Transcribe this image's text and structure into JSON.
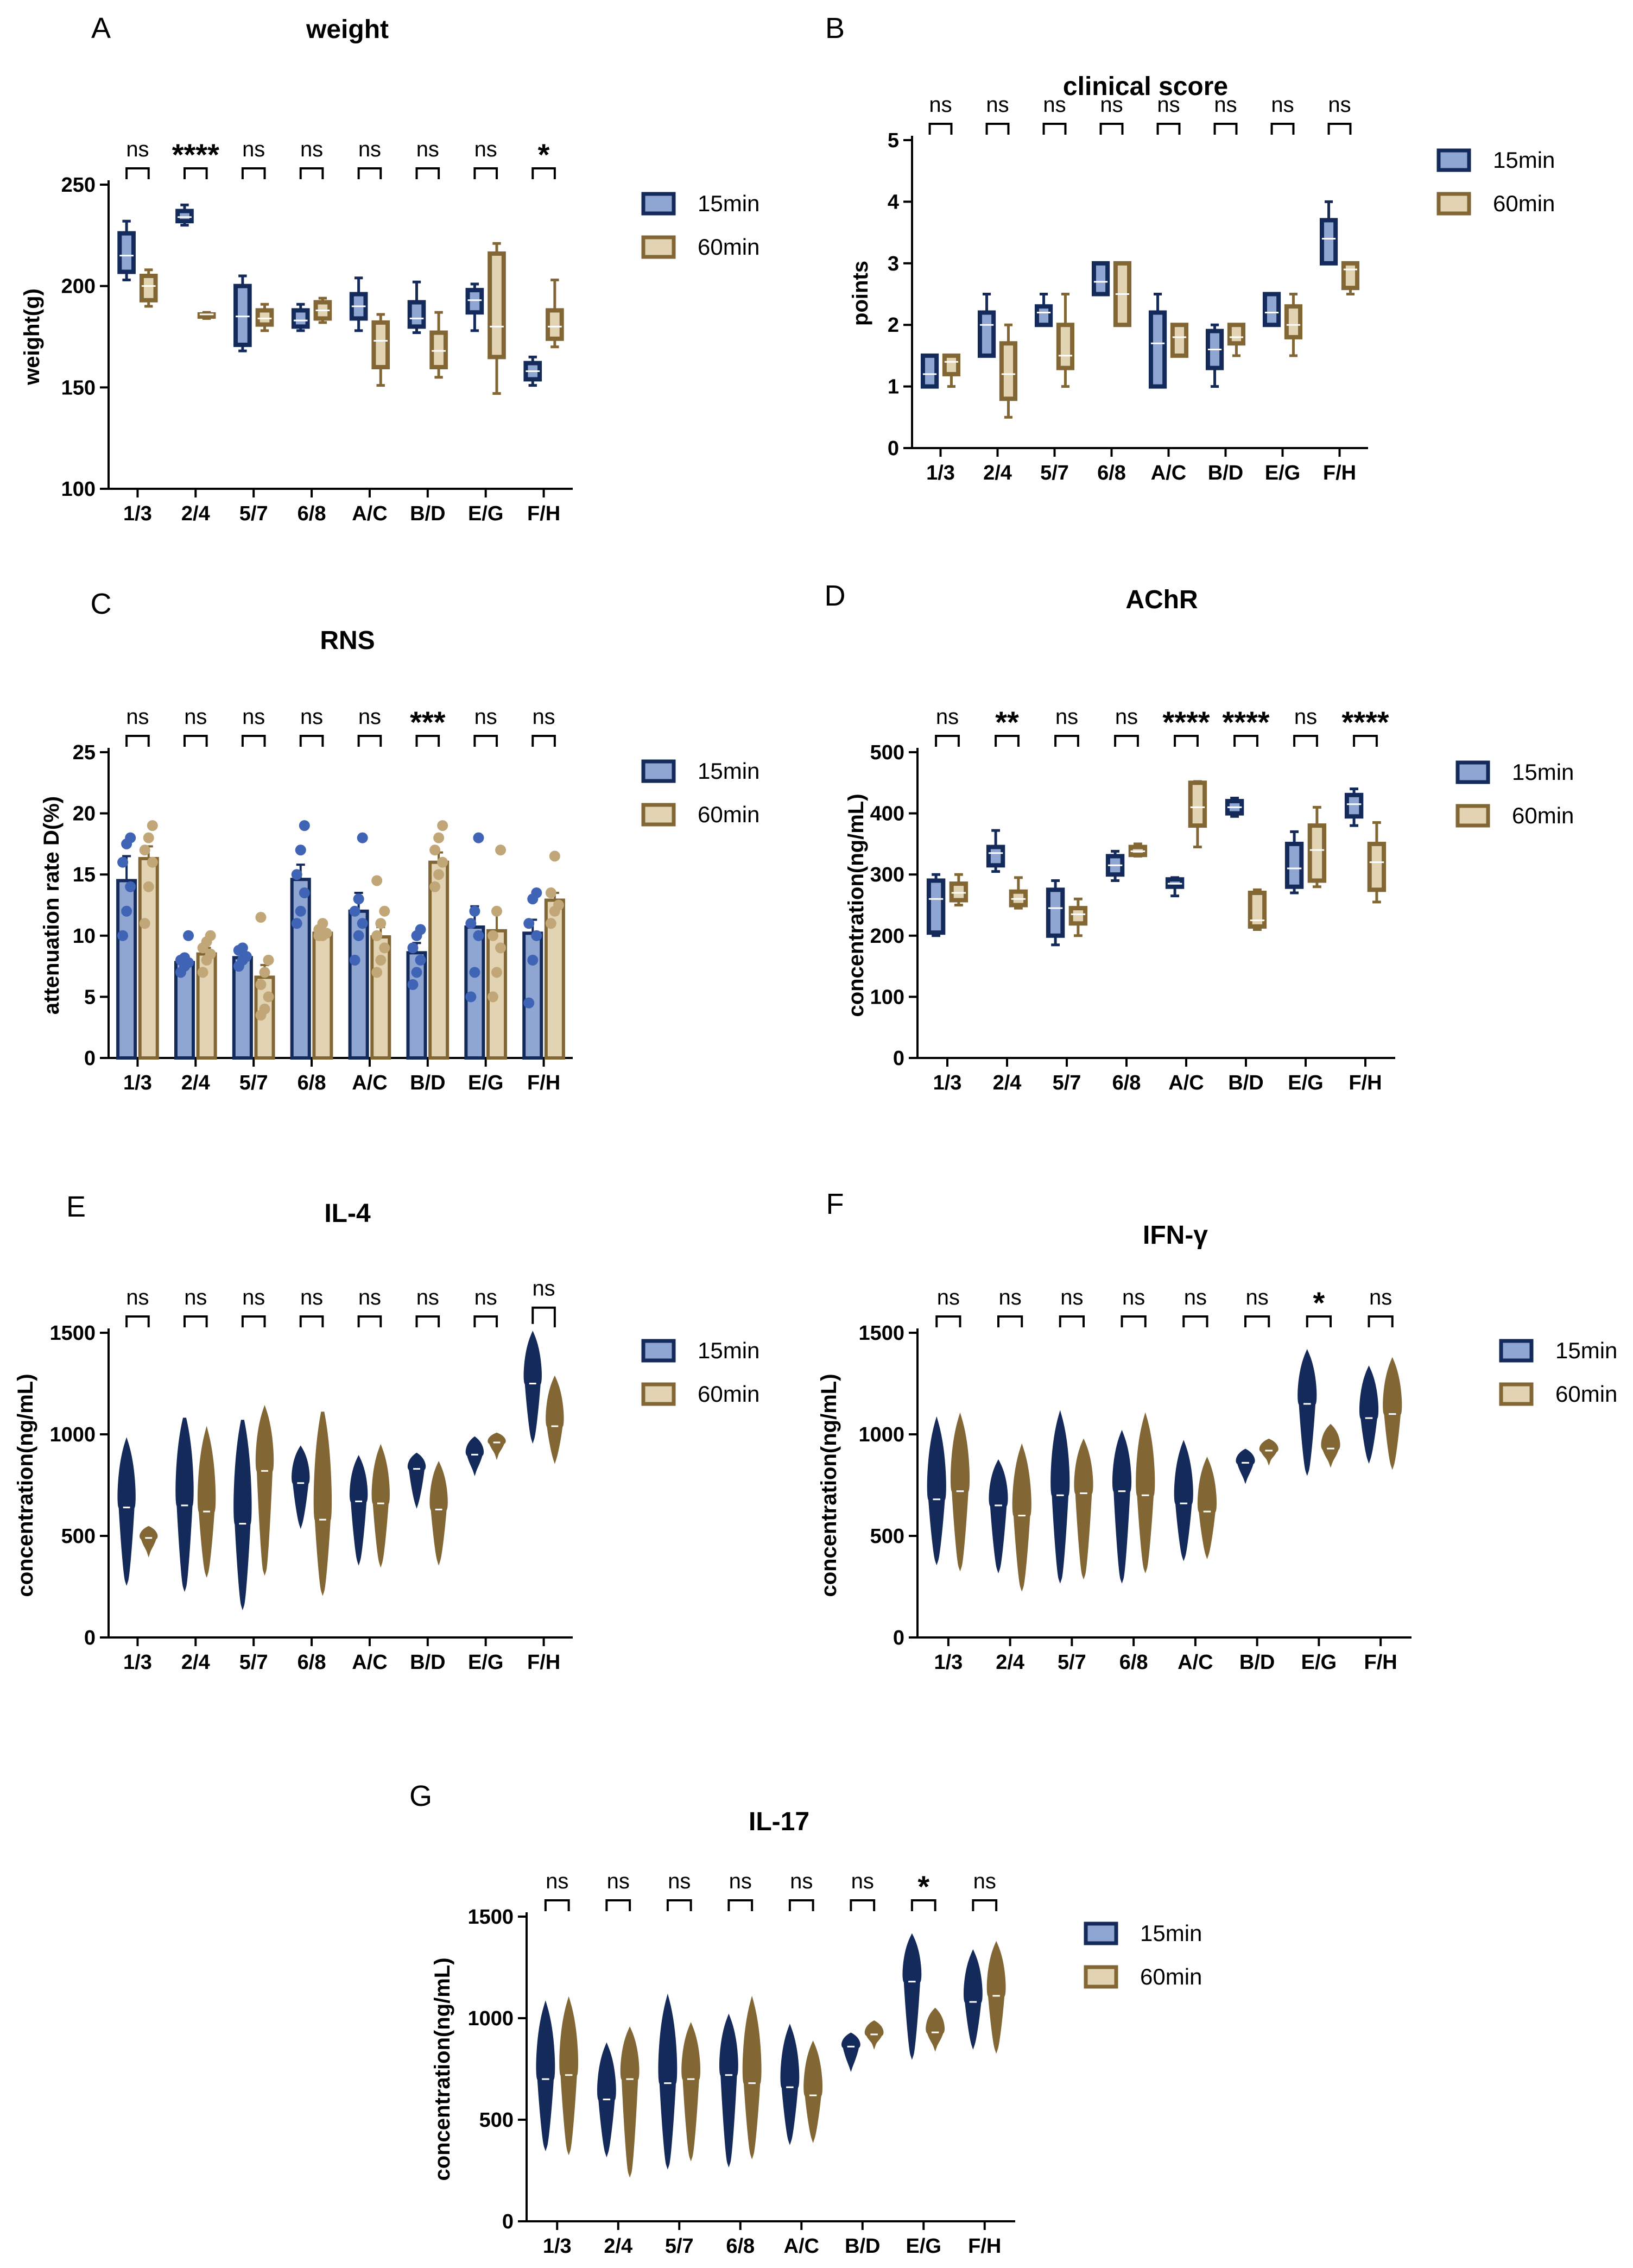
{
  "colors": {
    "fill15": "#8FA6D3",
    "edge15": "#132A5B",
    "fill60": "#E2D3B2",
    "edge60": "#826634",
    "dot15": "#3F63B5",
    "dot60": "#C1A778"
  },
  "legend": {
    "s15": "15min",
    "s60": "60min"
  },
  "chart_data": [
    {
      "letter": "A",
      "title": "weight",
      "type": "box",
      "ylabel": "weight(g)",
      "ylim": [
        100,
        250
      ],
      "yticks": [
        100,
        150,
        200,
        250
      ],
      "categories": [
        "1/3",
        "2/4",
        "5/7",
        "6/8",
        "A/C",
        "B/D",
        "E/G",
        "F/H"
      ],
      "significance": [
        "ns",
        "****",
        "ns",
        "ns",
        "ns",
        "ns",
        "ns",
        "*"
      ],
      "series": [
        {
          "name": "15min",
          "boxes": [
            [
              203,
              207,
              215,
              226,
              232
            ],
            [
              230,
              232,
              234,
              237,
              240
            ],
            [
              168,
              171,
              185,
              200,
              205
            ],
            [
              178,
              180,
              183,
              188,
              191
            ],
            [
              178,
              184,
              190,
              196,
              204
            ],
            [
              177,
              180,
              184,
              192,
              202
            ],
            [
              178,
              187,
              193,
              198,
              201
            ],
            [
              151,
              154,
              158,
              162,
              165
            ]
          ]
        },
        {
          "name": "60min",
          "boxes": [
            [
              190,
              193,
              200,
              205,
              208
            ],
            [
              184,
              185,
              186,
              186,
              187
            ],
            [
              178,
              181,
              184,
              188,
              191
            ],
            [
              182,
              184,
              188,
              192,
              194
            ],
            [
              151,
              160,
              173,
              182,
              186
            ],
            [
              155,
              160,
              168,
              177,
              187
            ],
            [
              147,
              165,
              180,
              216,
              221
            ],
            [
              170,
              174,
              180,
              188,
              203
            ]
          ]
        }
      ]
    },
    {
      "letter": "B",
      "title": "clinical score",
      "type": "box",
      "ylabel": "points",
      "ylim": [
        0,
        5
      ],
      "yticks": [
        0,
        1,
        2,
        3,
        4,
        5
      ],
      "categories": [
        "1/3",
        "2/4",
        "5/7",
        "6/8",
        "A/C",
        "B/D",
        "E/G",
        "F/H"
      ],
      "significance": [
        "ns",
        "ns",
        "ns",
        "ns",
        "ns",
        "ns",
        "ns",
        "ns"
      ],
      "series": [
        {
          "name": "15min",
          "boxes": [
            [
              1,
              1,
              1.2,
              1.5,
              1.5
            ],
            [
              1.5,
              1.5,
              2,
              2.2,
              2.5
            ],
            [
              2,
              2,
              2.2,
              2.3,
              2.5
            ],
            [
              2.5,
              2.5,
              2.7,
              3,
              3
            ],
            [
              1,
              1,
              1.7,
              2.2,
              2.5
            ],
            [
              1,
              1.3,
              1.6,
              1.9,
              2
            ],
            [
              2,
              2,
              2.2,
              2.5,
              2.5
            ],
            [
              3,
              3,
              3.4,
              3.7,
              4
            ]
          ]
        },
        {
          "name": "60min",
          "boxes": [
            [
              1,
              1.2,
              1.4,
              1.5,
              1.5
            ],
            [
              0.5,
              0.8,
              1.2,
              1.7,
              2
            ],
            [
              1,
              1.3,
              1.5,
              2,
              2.5
            ],
            [
              2,
              2,
              2.5,
              3,
              3
            ],
            [
              1.5,
              1.5,
              1.8,
              2,
              2
            ],
            [
              1.5,
              1.7,
              1.8,
              2,
              2
            ],
            [
              1.5,
              1.8,
              2,
              2.3,
              2.5
            ],
            [
              2.5,
              2.6,
              2.9,
              3,
              3
            ]
          ]
        }
      ]
    },
    {
      "letter": "C",
      "title": "RNS",
      "type": "bar",
      "ylabel": "attenuation rate D(%)",
      "ylim": [
        0,
        25
      ],
      "yticks": [
        0,
        5,
        10,
        15,
        20,
        25
      ],
      "categories": [
        "1/3",
        "2/4",
        "5/7",
        "6/8",
        "A/C",
        "B/D",
        "E/G",
        "F/H"
      ],
      "significance": [
        "ns",
        "ns",
        "ns",
        "ns",
        "ns",
        "***",
        "ns",
        "ns"
      ],
      "series": [
        {
          "name": "15min",
          "values": [
            14.5,
            7.8,
            8.2,
            14.6,
            12.0,
            8.6,
            10.7,
            10.2
          ],
          "errors": [
            2.0,
            0.6,
            0.5,
            1.2,
            1.5,
            0.8,
            1.7,
            1.1
          ],
          "points": [
            [
              10,
              12,
              14,
              16,
              17.5,
              18
            ],
            [
              7,
              7.5,
              7.8,
              8,
              8.2,
              10
            ],
            [
              7.5,
              8,
              8.3,
              8.8,
              9
            ],
            [
              11,
              12,
              13.5,
              15,
              17,
              19
            ],
            [
              8,
              10,
              11,
              12,
              13,
              18
            ],
            [
              6,
              7,
              8,
              9,
              10,
              10.5
            ],
            [
              5,
              7,
              10,
              11,
              12,
              18
            ],
            [
              4.5,
              8,
              10,
              11,
              13,
              13.5
            ]
          ]
        },
        {
          "name": "60min",
          "values": [
            16.3,
            8.5,
            6.6,
            10.2,
            9.9,
            16.0,
            10.4,
            12.9
          ],
          "errors": [
            1.0,
            0.5,
            1.0,
            0.3,
            0.8,
            0.8,
            1.5,
            0.6
          ],
          "points": [
            [
              11,
              14,
              16,
              17,
              18,
              19
            ],
            [
              7,
              8,
              8.5,
              9,
              9.5,
              10
            ],
            [
              3.5,
              4,
              5,
              6,
              7,
              8,
              11.5
            ],
            [
              10,
              10,
              10.2,
              10.5,
              11
            ],
            [
              7,
              8,
              9,
              10,
              11,
              12,
              14.5
            ],
            [
              14,
              15,
              16,
              17,
              18,
              19
            ],
            [
              5,
              7,
              9,
              10,
              12,
              17
            ],
            [
              11,
              12,
              12.5,
              13.5,
              16.5
            ]
          ]
        }
      ]
    },
    {
      "letter": "D",
      "title": "AChR",
      "type": "box",
      "ylabel": "concentration(ng/mL)",
      "ylim": [
        0,
        500
      ],
      "yticks": [
        0,
        100,
        200,
        300,
        400,
        500
      ],
      "categories": [
        "1/3",
        "2/4",
        "5/7",
        "6/8",
        "A/C",
        "B/D",
        "E/G",
        "F/H"
      ],
      "significance": [
        "ns",
        "**",
        "ns",
        "ns",
        "****",
        "****",
        "ns",
        "****"
      ],
      "series": [
        {
          "name": "15min",
          "boxes": [
            [
              200,
              205,
              260,
              290,
              300
            ],
            [
              305,
              315,
              335,
              345,
              372
            ],
            [
              185,
              200,
              245,
              275,
              290
            ],
            [
              290,
              300,
              315,
              330,
              338
            ],
            [
              265,
              280,
              285,
              292,
              295
            ],
            [
              395,
              400,
              410,
              420,
              425
            ],
            [
              270,
              280,
              310,
              350,
              370
            ],
            [
              380,
              395,
              415,
              430,
              440
            ]
          ]
        },
        {
          "name": "60min",
          "boxes": [
            [
              250,
              258,
              270,
              285,
              300
            ],
            [
              245,
              250,
              260,
              272,
              295
            ],
            [
              200,
              220,
              235,
              245,
              260
            ],
            [
              330,
              332,
              338,
              345,
              350
            ],
            [
              345,
              380,
              410,
              450,
              452
            ],
            [
              210,
              215,
              225,
              270,
              275
            ],
            [
              280,
              290,
              340,
              380,
              410
            ],
            [
              255,
              275,
              320,
              350,
              385
            ]
          ]
        }
      ]
    },
    {
      "letter": "E",
      "title": "IL-4",
      "type": "violin",
      "ylabel": "concentration(ng/mL)",
      "ylim": [
        0,
        1500
      ],
      "yticks": [
        0,
        500,
        1000,
        1500
      ],
      "categories": [
        "1/3",
        "2/4",
        "5/7",
        "6/8",
        "A/C",
        "B/D",
        "E/G",
        "F/H"
      ],
      "significance": [
        "ns",
        "ns",
        "ns",
        "ns",
        "ns",
        "ns",
        "ns",
        "ns"
      ],
      "series": [
        {
          "name": "15min",
          "violins": [
            [
              280,
              960,
              640
            ],
            [
              250,
              1080,
              650
            ],
            [
              160,
              1070,
              560
            ],
            [
              560,
              930,
              760
            ],
            [
              380,
              880,
              670
            ],
            [
              660,
              900,
              830
            ],
            [
              820,
              980,
              900
            ],
            [
              980,
              1490,
              1250
            ]
          ]
        },
        {
          "name": "60min",
          "violins": [
            [
              420,
              540,
              490
            ],
            [
              320,
              1010,
              620
            ],
            [
              330,
              1120,
              820
            ],
            [
              230,
              1110,
              580
            ],
            [
              370,
              930,
              660
            ],
            [
              380,
              850,
              630
            ],
            [
              900,
              1000,
              960
            ],
            [
              880,
              1270,
              1040
            ]
          ]
        }
      ]
    },
    {
      "letter": "F",
      "title": "IFN-γ",
      "type": "violin",
      "ylabel": "concentration(ng/mL)",
      "ylim": [
        0,
        1500
      ],
      "yticks": [
        0,
        500,
        1000,
        1500
      ],
      "categories": [
        "1/3",
        "2/4",
        "5/7",
        "6/8",
        "A/C",
        "B/D",
        "E/G",
        "F/H"
      ],
      "significance": [
        "ns",
        "ns",
        "ns",
        "ns",
        "ns",
        "ns",
        "*",
        "ns"
      ],
      "series": [
        {
          "name": "15min",
          "violins": [
            [
              380,
              1060,
              680
            ],
            [
              340,
              860,
              650
            ],
            [
              290,
              1090,
              700
            ],
            [
              290,
              1000,
              720
            ],
            [
              400,
              950,
              660
            ],
            [
              780,
              920,
              860
            ],
            [
              820,
              1400,
              1150
            ],
            [
              880,
              1320,
              1080
            ]
          ]
        },
        {
          "name": "60min",
          "violins": [
            [
              350,
              1080,
              720
            ],
            [
              250,
              930,
              600
            ],
            [
              310,
              960,
              710
            ],
            [
              340,
              1080,
              700
            ],
            [
              410,
              870,
              620
            ],
            [
              870,
              970,
              920
            ],
            [
              860,
              1040,
              930
            ],
            [
              850,
              1360,
              1100
            ]
          ]
        }
      ]
    },
    {
      "letter": "G",
      "title": "IL-17",
      "type": "violin",
      "ylabel": "concentration(ng/mL)",
      "ylim": [
        0,
        1500
      ],
      "yticks": [
        0,
        500,
        1000,
        1500
      ],
      "categories": [
        "1/3",
        "2/4",
        "5/7",
        "6/8",
        "A/C",
        "B/D",
        "E/G",
        "F/H"
      ],
      "significance": [
        "ns",
        "ns",
        "ns",
        "ns",
        "ns",
        "ns",
        "*",
        "ns"
      ],
      "series": [
        {
          "name": "15min",
          "violins": [
            [
              370,
              1060,
              700
            ],
            [
              340,
              860,
              600
            ],
            [
              280,
              1090,
              680
            ],
            [
              290,
              1000,
              720
            ],
            [
              400,
              950,
              660
            ],
            [
              760,
              920,
              860
            ],
            [
              820,
              1400,
              1180
            ],
            [
              870,
              1320,
              1080
            ]
          ]
        },
        {
          "name": "60min",
          "violins": [
            [
              350,
              1080,
              720
            ],
            [
              240,
              940,
              700
            ],
            [
              320,
              960,
              700
            ],
            [
              330,
              1080,
              680
            ],
            [
              410,
              870,
              620
            ],
            [
              870,
              980,
              920
            ],
            [
              860,
              1040,
              930
            ],
            [
              850,
              1360,
              1110
            ]
          ]
        }
      ]
    }
  ]
}
